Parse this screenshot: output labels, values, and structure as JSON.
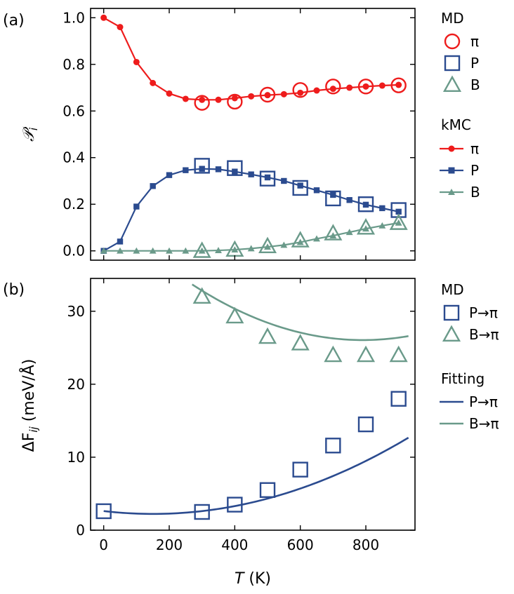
{
  "colors": {
    "pi": "#ee1c1c",
    "p": "#2b4b8f",
    "b": "#6a9a8a",
    "axis": "#000000"
  },
  "chart_data": [
    {
      "panel_label": "(a)",
      "type": "line",
      "ylabel": "𝒫",
      "ylabel_sub": "i",
      "xlim": [
        -40,
        950
      ],
      "ylim": [
        -0.04,
        1.04
      ],
      "xticks": [
        0,
        200,
        400,
        600,
        800
      ],
      "xtick_labels": [],
      "yticks": [
        0.0,
        0.2,
        0.4,
        0.6,
        0.8,
        1.0
      ],
      "ytick_labels": [
        "0.0",
        "0.2",
        "0.4",
        "0.6",
        "0.8",
        "1.0"
      ],
      "kmc_x": [
        0,
        50,
        100,
        150,
        200,
        250,
        300,
        350,
        400,
        450,
        500,
        550,
        600,
        650,
        700,
        750,
        800,
        850,
        900
      ],
      "md_x": [
        300,
        400,
        500,
        600,
        700,
        800,
        900
      ],
      "series": [
        {
          "name": "π",
          "group": "MD",
          "marker": "circle-open",
          "color_key": "pi",
          "values": [
            0.635,
            0.64,
            0.67,
            0.69,
            0.705,
            0.705,
            0.71
          ]
        },
        {
          "name": "P",
          "group": "MD",
          "marker": "square-open",
          "color_key": "p",
          "values": [
            0.365,
            0.355,
            0.31,
            0.27,
            0.225,
            0.2,
            0.175
          ]
        },
        {
          "name": "B",
          "group": "MD",
          "marker": "triangle-open",
          "color_key": "b",
          "values": [
            0.0,
            0.005,
            0.02,
            0.045,
            0.075,
            0.1,
            0.12
          ]
        },
        {
          "name": "π",
          "group": "kMC",
          "marker": "circle",
          "color_key": "pi",
          "values": [
            1.0,
            0.96,
            0.81,
            0.72,
            0.675,
            0.652,
            0.648,
            0.648,
            0.655,
            0.663,
            0.668,
            0.672,
            0.678,
            0.688,
            0.695,
            0.7,
            0.705,
            0.709,
            0.712
          ]
        },
        {
          "name": "P",
          "group": "kMC",
          "marker": "square",
          "color_key": "p",
          "values": [
            0.0,
            0.04,
            0.19,
            0.278,
            0.325,
            0.346,
            0.352,
            0.35,
            0.34,
            0.328,
            0.315,
            0.3,
            0.28,
            0.26,
            0.24,
            0.218,
            0.198,
            0.183,
            0.168
          ]
        },
        {
          "name": "B",
          "group": "kMC",
          "marker": "triangle",
          "color_key": "b",
          "values": [
            0.0,
            0.0,
            0.0,
            0.0,
            0.0,
            0.0,
            0.0,
            0.002,
            0.005,
            0.01,
            0.017,
            0.025,
            0.037,
            0.052,
            0.065,
            0.08,
            0.095,
            0.108,
            0.12
          ]
        }
      ],
      "legend": [
        {
          "title": "MD",
          "entries": [
            "π",
            "P",
            "B"
          ]
        },
        {
          "title": "kMC",
          "entries": [
            "π",
            "P",
            "B"
          ]
        }
      ]
    },
    {
      "panel_label": "(b)",
      "type": "scatter",
      "ylabel": "ΔF",
      "ylabel_sub": "ij",
      "ylabel_unit": " (meV/Å)",
      "xlabel": "T",
      "xlabel_unit": " (K)",
      "xlim": [
        -40,
        950
      ],
      "ylim": [
        0,
        34.5
      ],
      "xticks": [
        0,
        200,
        400,
        600,
        800
      ],
      "xtick_labels": [
        "0",
        "200",
        "400",
        "600",
        "800"
      ],
      "yticks": [
        0,
        10,
        20,
        30
      ],
      "ytick_labels": [
        "0",
        "10",
        "20",
        "30"
      ],
      "series": [
        {
          "name": "P→π",
          "group": "MD",
          "marker": "square-open",
          "color_key": "p",
          "x": [
            0,
            300,
            400,
            500,
            600,
            700,
            800,
            900
          ],
          "values": [
            2.6,
            2.5,
            3.5,
            5.5,
            8.3,
            11.6,
            14.5,
            18.0
          ]
        },
        {
          "name": "B→π",
          "group": "MD",
          "marker": "triangle-open",
          "color_key": "b",
          "x": [
            300,
            400,
            500,
            600,
            700,
            800,
            900
          ],
          "values": [
            32.0,
            29.3,
            26.5,
            25.6,
            24.0,
            24.0,
            24.0
          ]
        }
      ],
      "fits": [
        {
          "name": "P→π",
          "group": "Fitting",
          "color_key": "p",
          "range": [
            0,
            930
          ],
          "coefficients": [
            2.62,
            -0.00518,
            1.72e-05
          ]
        },
        {
          "name": "B→π",
          "group": "Fitting",
          "color_key": "b",
          "range": [
            270,
            930
          ],
          "coefficients": [
            43.63,
            -0.04445,
            2.81e-05
          ]
        }
      ],
      "legend": [
        {
          "title": "MD",
          "entries": [
            "P→π",
            "B→π"
          ]
        },
        {
          "title": "Fitting",
          "entries": [
            "P→π",
            "B→π"
          ]
        }
      ]
    }
  ]
}
